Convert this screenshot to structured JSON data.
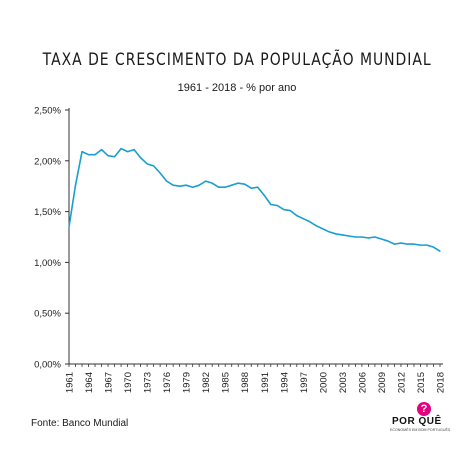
{
  "logo": {
    "text": "POR QUÊ",
    "tagline": "ECONOMÊS EM BOM PORTUGUÊS",
    "accent_color": "#e5007e"
  },
  "source": "Fonte: Banco Mundial",
  "chart_data": {
    "type": "line",
    "title": "TAXA DE CRESCIMENTO DA POPULAÇÃO MUNDIAL",
    "subtitle": "1961 - 2018 - % por ano",
    "xlabel": "",
    "ylabel": "",
    "ylim": [
      0,
      2.5
    ],
    "xlim": [
      1961,
      2018
    ],
    "grid": false,
    "line_color": "#1a9dd1",
    "yticks": [
      0,
      0.5,
      1.0,
      1.5,
      2.0,
      2.5
    ],
    "ytick_labels": [
      "0,00%",
      "0,50%",
      "1,00%",
      "1,50%",
      "2,00%",
      "2,50%"
    ],
    "xticks": [
      1961,
      1964,
      1967,
      1970,
      1973,
      1976,
      1979,
      1982,
      1985,
      1988,
      1991,
      1994,
      1997,
      2000,
      2003,
      2006,
      2009,
      2012,
      2015,
      2018
    ],
    "xtick_labels": [
      "1961",
      "1964",
      "1967",
      "1970",
      "1973",
      "1976",
      "1979",
      "1982",
      "1985",
      "1988",
      "1991",
      "1994",
      "1997",
      "2000",
      "2003",
      "2006",
      "2009",
      "2012",
      "2015",
      "2018"
    ],
    "series": [
      {
        "x": [
          1961,
          1962,
          1963,
          1964,
          1965,
          1966,
          1967,
          1968,
          1969,
          1970,
          1971,
          1972,
          1973,
          1974,
          1975,
          1976,
          1977,
          1978,
          1979,
          1980,
          1981,
          1982,
          1983,
          1984,
          1985,
          1986,
          1987,
          1988,
          1989,
          1990,
          1991,
          1992,
          1993,
          1994,
          1995,
          1996,
          1997,
          1998,
          1999,
          2000,
          2001,
          2002,
          2003,
          2004,
          2005,
          2006,
          2007,
          2008,
          2009,
          2010,
          2011,
          2012,
          2013,
          2014,
          2015,
          2016,
          2017,
          2018
        ],
        "values": [
          1.35,
          1.76,
          2.09,
          2.06,
          2.06,
          2.11,
          2.05,
          2.04,
          2.12,
          2.09,
          2.11,
          2.03,
          1.97,
          1.95,
          1.88,
          1.8,
          1.76,
          1.75,
          1.76,
          1.74,
          1.76,
          1.8,
          1.78,
          1.74,
          1.74,
          1.76,
          1.78,
          1.77,
          1.73,
          1.74,
          1.66,
          1.57,
          1.56,
          1.52,
          1.51,
          1.46,
          1.43,
          1.4,
          1.36,
          1.33,
          1.3,
          1.28,
          1.27,
          1.26,
          1.25,
          1.25,
          1.24,
          1.25,
          1.23,
          1.21,
          1.18,
          1.19,
          1.18,
          1.18,
          1.17,
          1.17,
          1.15,
          1.11
        ]
      }
    ]
  }
}
